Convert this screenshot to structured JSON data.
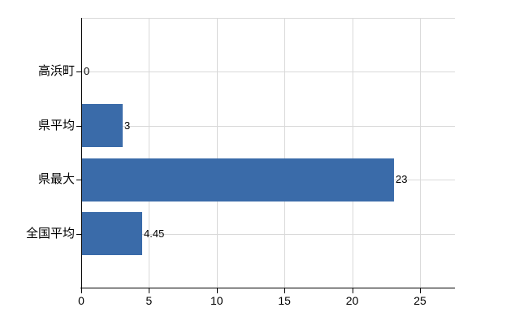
{
  "chart_data": {
    "type": "bar",
    "orientation": "horizontal",
    "title": "",
    "xlabel": "",
    "ylabel": "",
    "categories": [
      "高浜町",
      "県平均",
      "県最大",
      "全国平均"
    ],
    "values": [
      0,
      3,
      23,
      4.45
    ],
    "value_labels": [
      "0",
      "3",
      "23",
      "4.45"
    ],
    "x_ticks": [
      0,
      5,
      10,
      15,
      20,
      25
    ],
    "x_tick_labels": [
      "0",
      "5",
      "10",
      "15",
      "20",
      "25"
    ],
    "xlim": [
      0,
      27.6
    ],
    "grid": true,
    "legend": false,
    "colors": {
      "bar": "#3a6ba9",
      "grid": "#d9d9d9",
      "axis": "#000000",
      "text": "#000000",
      "background": "#ffffff"
    }
  }
}
